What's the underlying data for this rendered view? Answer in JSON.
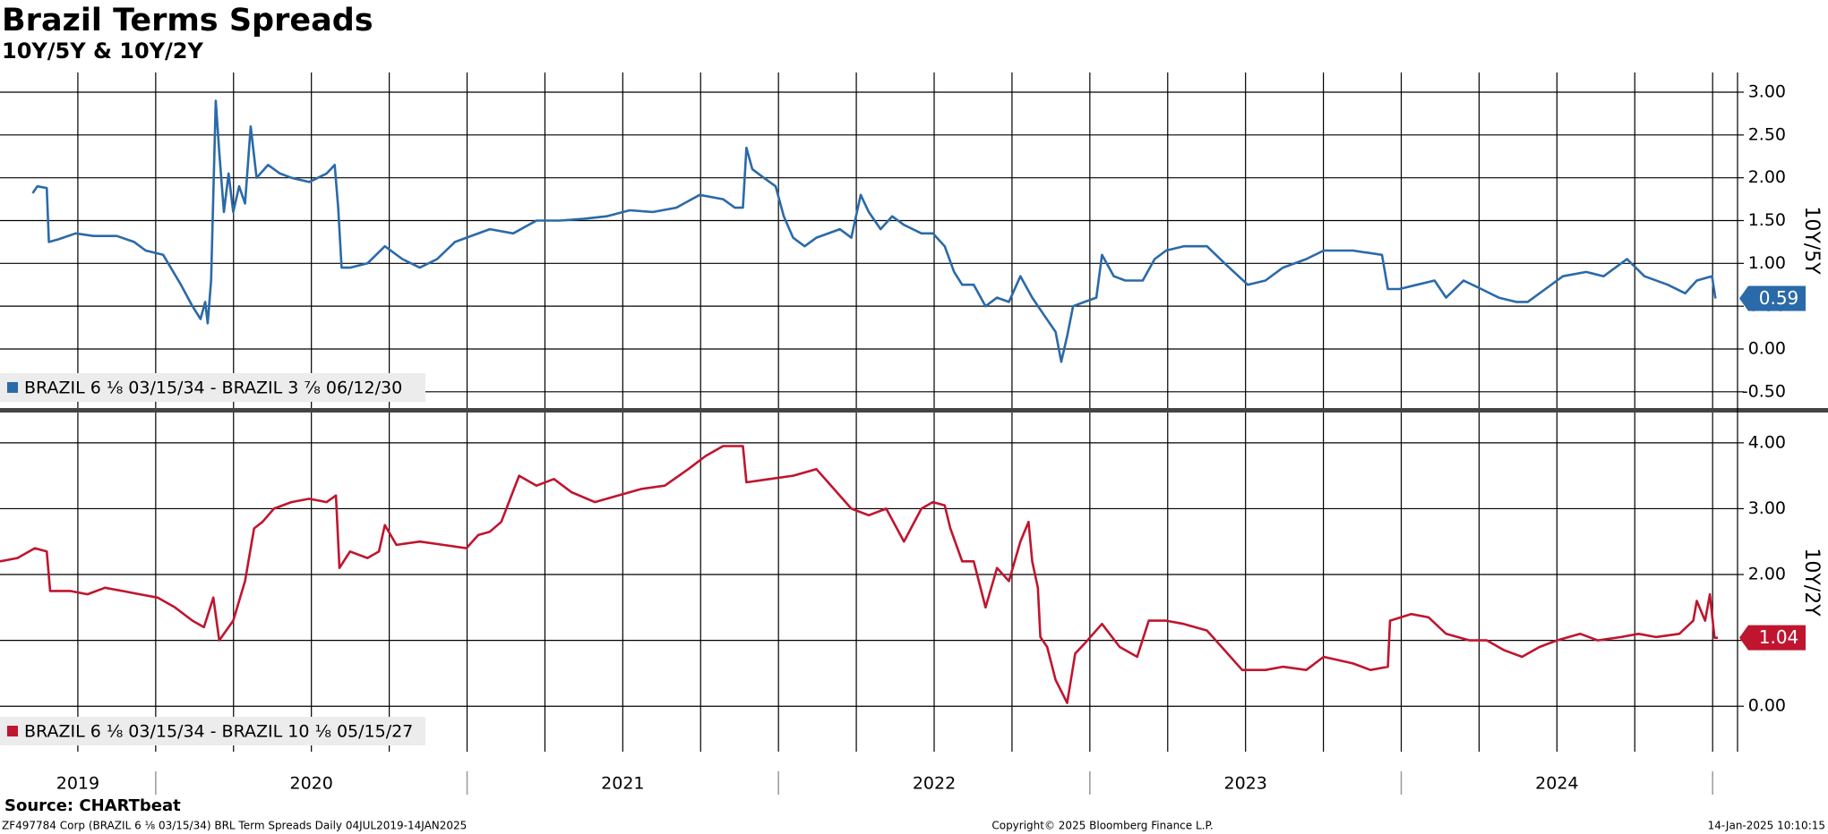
{
  "title": "Brazil Terms Spreads",
  "subtitle": "10Y/5Y & 10Y/2Y",
  "source": "Source: CHARTbeat",
  "footer_left": "ZF497784 Corp (BRAZIL 6 ⅛ 03/15/34) BRL Term Spreads  Daily 04JUL2019-14JAN2025",
  "footer_center": "Copyright© 2025 Bloomberg Finance L.P.",
  "footer_right": "14-Jan-2025 10:10:15",
  "chart_data": [
    {
      "type": "line",
      "ylabel": "10Y/5Y",
      "xlim": [
        2019.5,
        2025.08
      ],
      "xticks": [
        2019.75,
        2020,
        2020.25,
        2020.5,
        2020.75,
        2021,
        2021.25,
        2021.5,
        2021.75,
        2022,
        2022.25,
        2022.5,
        2022.75,
        2023,
        2023.25,
        2023.5,
        2023.75,
        2024,
        2024.25,
        2024.5,
        2024.75,
        2025
      ],
      "ylim": [
        -0.69,
        3.23
      ],
      "yticks": [
        {
          "value": 3,
          "label": "3.00"
        },
        {
          "value": 2.5,
          "label": "2.50"
        },
        {
          "value": 2,
          "label": "2.00"
        },
        {
          "value": 1.5,
          "label": "1.50"
        },
        {
          "value": 1,
          "label": "1.00"
        },
        {
          "value": 0.5,
          "label": "0.50"
        },
        {
          "value": 0,
          "label": "0.00"
        },
        {
          "value": -0.5,
          "label": "-0.50"
        }
      ],
      "grid": true,
      "legend": "lower-left",
      "x": [
        2019.605,
        2019.62,
        2019.65,
        2019.657,
        2019.687,
        2019.743,
        2019.8,
        2019.875,
        2019.931,
        2019.968,
        2020.024,
        2020.081,
        2020.118,
        2020.144,
        2020.159,
        2020.167,
        2020.178,
        2020.193,
        2020.204,
        2020.219,
        2020.234,
        2020.249,
        2020.268,
        2020.287,
        2020.305,
        2020.324,
        2020.361,
        2020.399,
        2020.436,
        2020.493,
        2020.549,
        2020.575,
        2020.586,
        2020.597,
        2020.624,
        2020.68,
        2020.736,
        2020.792,
        2020.848,
        2020.904,
        2020.961,
        2020.998,
        2021.073,
        2021.148,
        2021.223,
        2021.298,
        2021.373,
        2021.448,
        2021.522,
        2021.597,
        2021.672,
        2021.747,
        2021.822,
        2021.86,
        2021.886,
        2021.897,
        2021.916,
        2021.953,
        2021.991,
        2022.017,
        2022.047,
        2022.084,
        2022.122,
        2022.197,
        2022.234,
        2022.264,
        2022.29,
        2022.328,
        2022.365,
        2022.403,
        2022.459,
        2022.496,
        2022.534,
        2022.564,
        2022.59,
        2022.627,
        2022.665,
        2022.702,
        2022.74,
        2022.777,
        2022.815,
        2022.852,
        2022.89,
        2022.908,
        2022.927,
        2022.946,
        2022.983,
        2023.021,
        2023.039,
        2023.077,
        2023.114,
        2023.17,
        2023.208,
        2023.245,
        2023.301,
        2023.376,
        2023.433,
        2023.507,
        2023.564,
        2023.62,
        2023.695,
        2023.751,
        2023.845,
        2023.938,
        2023.957,
        2023.994,
        2024.051,
        2024.107,
        2024.144,
        2024.2,
        2024.257,
        2024.313,
        2024.369,
        2024.406,
        2024.463,
        2024.519,
        2024.594,
        2024.65,
        2024.725,
        2024.781,
        2024.856,
        2024.912,
        2024.949,
        2024.998,
        2025.009
      ],
      "series": [
        {
          "name": "BRAZIL 6 ⅛ 03/15/34 - BRAZIL 3 ⅞ 06/12/30",
          "color": "#2a6aa8",
          "values": [
            1.82,
            1.9,
            1.88,
            1.25,
            1.28,
            1.35,
            1.32,
            1.32,
            1.25,
            1.15,
            1.1,
            0.75,
            0.5,
            0.35,
            0.55,
            0.3,
            0.8,
            2.9,
            2.3,
            1.6,
            2.05,
            1.6,
            1.9,
            1.7,
            2.6,
            2.0,
            2.15,
            2.05,
            2.0,
            1.95,
            2.05,
            2.15,
            1.65,
            0.95,
            0.95,
            1.0,
            1.2,
            1.05,
            0.95,
            1.05,
            1.25,
            1.3,
            1.4,
            1.35,
            1.5,
            1.5,
            1.52,
            1.55,
            1.62,
            1.6,
            1.65,
            1.8,
            1.75,
            1.65,
            1.65,
            2.35,
            2.1,
            2.0,
            1.9,
            1.55,
            1.3,
            1.2,
            1.3,
            1.4,
            1.3,
            1.8,
            1.6,
            1.4,
            1.55,
            1.45,
            1.35,
            1.35,
            1.2,
            0.9,
            0.75,
            0.75,
            0.5,
            0.6,
            0.55,
            0.85,
            0.6,
            0.4,
            0.2,
            -0.15,
            0.15,
            0.5,
            0.55,
            0.6,
            1.1,
            0.85,
            0.8,
            0.8,
            1.05,
            1.15,
            1.2,
            1.2,
            1.0,
            0.75,
            0.8,
            0.95,
            1.05,
            1.15,
            1.15,
            1.1,
            0.7,
            0.7,
            0.75,
            0.8,
            0.6,
            0.8,
            0.7,
            0.6,
            0.55,
            0.55,
            0.7,
            0.85,
            0.9,
            0.85,
            1.05,
            0.85,
            0.75,
            0.65,
            0.8,
            0.85,
            0.59
          ]
        }
      ]
    },
    {
      "type": "line",
      "ylabel": "10Y/2Y",
      "xlim": [
        2019.5,
        2025.08
      ],
      "xticks": [
        2019.75,
        2020,
        2020.25,
        2020.5,
        2020.75,
        2021,
        2021.25,
        2021.5,
        2021.75,
        2022,
        2022.25,
        2022.5,
        2022.75,
        2023,
        2023.25,
        2023.5,
        2023.75,
        2024,
        2024.25,
        2024.5,
        2024.75,
        2025
      ],
      "x_labels": [
        {
          "value": 2019.75,
          "label": "2019"
        },
        {
          "value": 2020.5,
          "label": "2020"
        },
        {
          "value": 2021.5,
          "label": "2021"
        },
        {
          "value": 2022.5,
          "label": "2022"
        },
        {
          "value": 2023.5,
          "label": "2023"
        },
        {
          "value": 2024.5,
          "label": "2024"
        }
      ],
      "ylim": [
        -0.69,
        4.46
      ],
      "yticks": [
        {
          "value": 4,
          "label": "4.00"
        },
        {
          "value": 3,
          "label": "3.00"
        },
        {
          "value": 2,
          "label": "2.00"
        },
        {
          "value": 1,
          "label": "1.00"
        },
        {
          "value": 0,
          "label": "0.00"
        }
      ],
      "grid": true,
      "legend": "lower-left",
      "x": [
        2019.5,
        2019.556,
        2019.612,
        2019.65,
        2019.661,
        2019.725,
        2019.781,
        2019.837,
        2019.893,
        2019.949,
        2020.006,
        2020.062,
        2020.118,
        2020.155,
        2020.185,
        2020.204,
        2020.219,
        2020.249,
        2020.287,
        2020.316,
        2020.343,
        2020.38,
        2020.436,
        2020.493,
        2020.549,
        2020.579,
        2020.59,
        2020.624,
        2020.68,
        2020.717,
        2020.736,
        2020.773,
        2020.848,
        2020.923,
        2020.998,
        2021.036,
        2021.073,
        2021.11,
        2021.167,
        2021.223,
        2021.279,
        2021.335,
        2021.41,
        2021.485,
        2021.56,
        2021.635,
        2021.71,
        2021.766,
        2021.822,
        2021.886,
        2021.897,
        2021.972,
        2022.047,
        2022.122,
        2022.178,
        2022.234,
        2022.29,
        2022.346,
        2022.403,
        2022.459,
        2022.496,
        2022.534,
        2022.552,
        2022.59,
        2022.627,
        2022.665,
        2022.702,
        2022.74,
        2022.777,
        2022.803,
        2022.815,
        2022.833,
        2022.841,
        2022.863,
        2022.89,
        2022.927,
        2022.953,
        2022.983,
        2023.039,
        2023.096,
        2023.152,
        2023.189,
        2023.245,
        2023.301,
        2023.376,
        2023.433,
        2023.489,
        2023.564,
        2023.62,
        2023.695,
        2023.751,
        2023.845,
        2023.901,
        2023.957,
        2023.964,
        2024.032,
        2024.088,
        2024.144,
        2024.219,
        2024.275,
        2024.331,
        2024.388,
        2024.444,
        2024.5,
        2024.575,
        2024.631,
        2024.706,
        2024.762,
        2024.818,
        2024.893,
        2024.938,
        2024.949,
        2024.976,
        2024.991,
        2025.006,
        2025.017
      ],
      "series": [
        {
          "name": "BRAZIL 6 ⅛ 03/15/34 - BRAZIL 10 ⅛ 05/15/27",
          "color": "#c0152f",
          "values": [
            2.2,
            2.25,
            2.4,
            2.35,
            1.75,
            1.75,
            1.7,
            1.8,
            1.75,
            1.7,
            1.65,
            1.5,
            1.3,
            1.2,
            1.65,
            1.0,
            1.1,
            1.3,
            1.9,
            2.7,
            2.8,
            3.0,
            3.1,
            3.15,
            3.1,
            3.2,
            2.1,
            2.35,
            2.25,
            2.35,
            2.75,
            2.45,
            2.5,
            2.45,
            2.4,
            2.6,
            2.65,
            2.8,
            3.5,
            3.35,
            3.45,
            3.25,
            3.1,
            3.2,
            3.3,
            3.35,
            3.6,
            3.8,
            3.95,
            3.95,
            3.4,
            3.45,
            3.5,
            3.6,
            3.3,
            3.0,
            2.9,
            3.0,
            2.5,
            3.0,
            3.1,
            3.05,
            2.7,
            2.2,
            2.2,
            1.5,
            2.1,
            1.9,
            2.5,
            2.8,
            2.2,
            1.8,
            1.05,
            0.9,
            0.4,
            0.05,
            0.8,
            0.95,
            1.25,
            0.9,
            0.75,
            1.3,
            1.3,
            1.25,
            1.15,
            0.85,
            0.55,
            0.55,
            0.6,
            0.55,
            0.75,
            0.65,
            0.55,
            0.6,
            1.3,
            1.4,
            1.35,
            1.1,
            1.0,
            1.0,
            0.85,
            0.75,
            0.9,
            1.0,
            1.1,
            1.0,
            1.05,
            1.1,
            1.05,
            1.1,
            1.3,
            1.6,
            1.3,
            1.7,
            1.04,
            1.04
          ]
        }
      ]
    }
  ]
}
